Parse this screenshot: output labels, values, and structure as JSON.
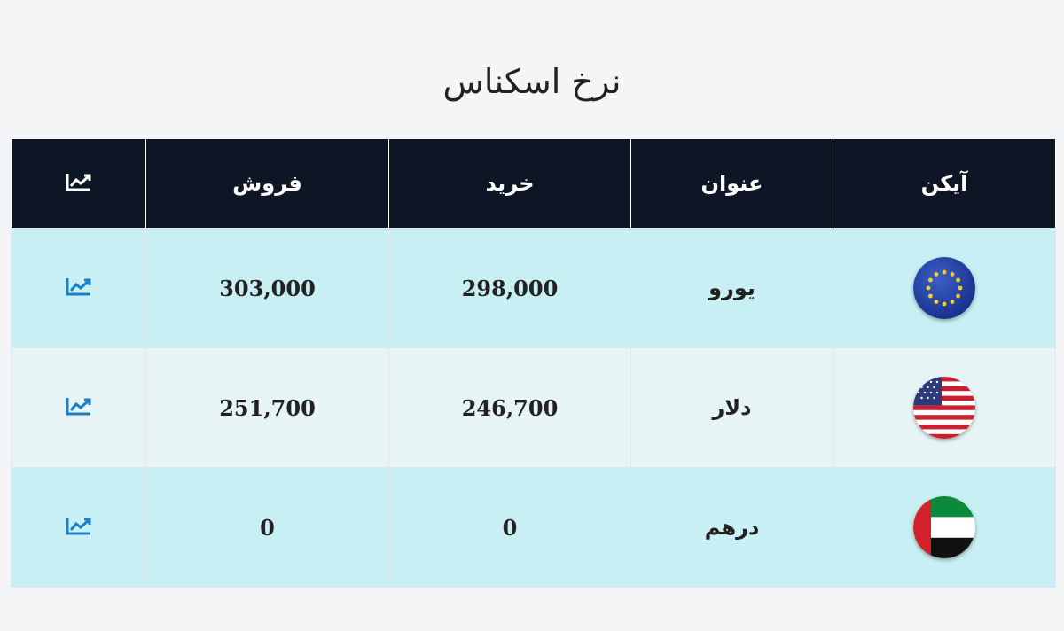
{
  "page": {
    "title": "نرخ اسکناس"
  },
  "table": {
    "headers": {
      "icon": "آیکن",
      "title": "عنوان",
      "buy": "خرید",
      "sell": "فروش",
      "chart_icon": "chart-line-icon"
    },
    "rows": [
      {
        "icon": "eu-flag-icon",
        "title": "یورو",
        "buy": "298,000",
        "sell": "303,000",
        "chart_icon": "chart-line-icon"
      },
      {
        "icon": "us-flag-icon",
        "title": "دلار",
        "buy": "246,700",
        "sell": "251,700",
        "chart_icon": "chart-line-icon"
      },
      {
        "icon": "uae-flag-icon",
        "title": "درهم",
        "buy": "0",
        "sell": "0",
        "chart_icon": "chart-line-icon"
      }
    ]
  },
  "colors": {
    "header_bg": "#0e1626",
    "row_odd_bg": "#c8f0f4",
    "row_even_bg": "#e7f4f6",
    "chart_icon_color": "#1a7fc4"
  }
}
